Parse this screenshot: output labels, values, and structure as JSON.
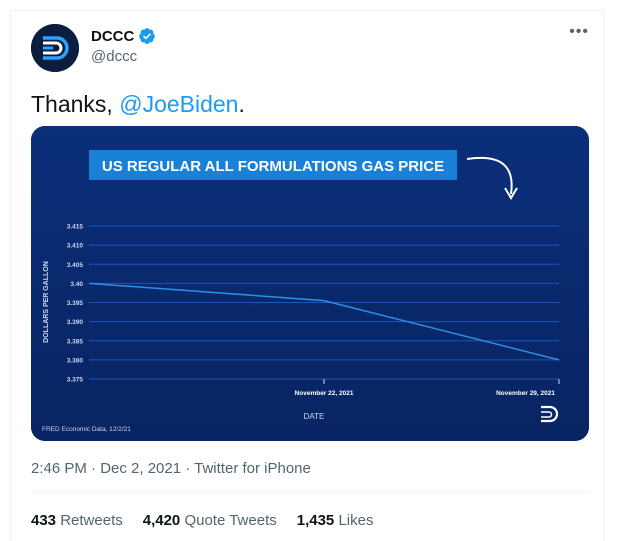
{
  "author": {
    "display_name": "DCCC",
    "handle": "@dccc",
    "avatar_icon": "dccc-logo-icon",
    "verified_icon": "verified-badge-icon"
  },
  "tweet": {
    "text_prefix": "Thanks, ",
    "mention": "@JoeBiden",
    "text_suffix": ".",
    "timestamp": "2:46 PM · Dec 2, 2021 · Twitter for iPhone"
  },
  "stats": [
    {
      "count": "433",
      "label": "Retweets"
    },
    {
      "count": "4,420",
      "label": "Quote Tweets"
    },
    {
      "count": "1,435",
      "label": "Likes"
    }
  ],
  "colors": {
    "accent": "#1d9bf0",
    "chart_bg": "#0a2a6e",
    "title_bg": "#1a7fd6"
  },
  "chart_data": {
    "type": "line",
    "title": "US REGULAR ALL FORMULATIONS GAS PRICE",
    "xlabel": "DATE",
    "ylabel": "DOLLARS PER GALLON",
    "x_ticks": [
      "November 22, 2021",
      "November 29, 2021"
    ],
    "y_ticks": [
      "3.415",
      "3.410",
      "3.405",
      "3.40",
      "3.395",
      "3.390",
      "3.385",
      "3.380",
      "3.375"
    ],
    "ylim": [
      3.375,
      3.415
    ],
    "series": [
      {
        "x": [
          "2021-11-15",
          "2021-11-22",
          "2021-11-29"
        ],
        "values": [
          3.4,
          3.3955,
          3.38
        ]
      }
    ],
    "source": "FRED Economic Data, 12/2/21",
    "grid": true
  }
}
